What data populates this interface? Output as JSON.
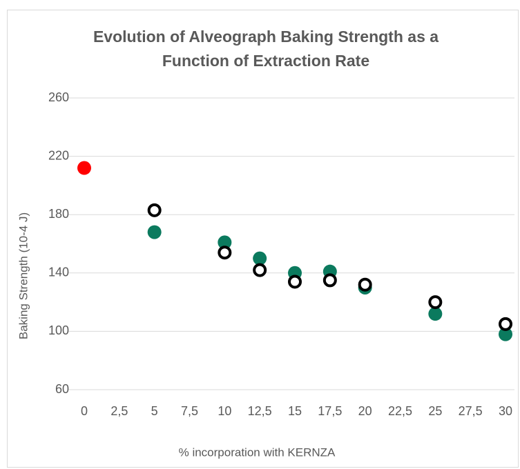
{
  "chart_data": {
    "type": "scatter",
    "title": "Evolution of Alveograph Baking Strength as a Function of Extraction Rate",
    "x_label": "% incorporation with KERNZA",
    "y_label": "Baking Strength (10-4 J)",
    "series": [
      {
        "color": "#ff0000",
        "hollow": false,
        "x": [
          0
        ],
        "values": [
          212
        ]
      },
      {
        "color": "#0b7a5e",
        "hollow": false,
        "x": [
          5,
          10,
          12.5,
          15,
          17.5,
          20,
          25,
          30
        ],
        "values": [
          168,
          161,
          150,
          140,
          141,
          130,
          112,
          98
        ]
      },
      {
        "color": "#000000",
        "hollow": true,
        "x": [
          5,
          10,
          12.5,
          15,
          17.5,
          20,
          25,
          30
        ],
        "values": [
          183,
          154,
          142,
          134,
          135,
          132,
          120,
          105
        ]
      }
    ],
    "xlim": [
      0,
      30
    ],
    "xticks": [
      0,
      {
        "value": 2.5,
        "label": "2,5"
      },
      5,
      {
        "value": 7.5,
        "label": "7,5"
      },
      10,
      {
        "value": 12.5,
        "label": "12,5"
      },
      15,
      {
        "value": 17.5,
        "label": "17,5"
      },
      20,
      {
        "value": 22.5,
        "label": "22,5"
      },
      25,
      {
        "value": 27.5,
        "label": "27,5"
      },
      30
    ],
    "ylim": [
      60,
      260
    ],
    "yticks": [
      60,
      100,
      140,
      180,
      220,
      260
    ],
    "grid": true
  }
}
